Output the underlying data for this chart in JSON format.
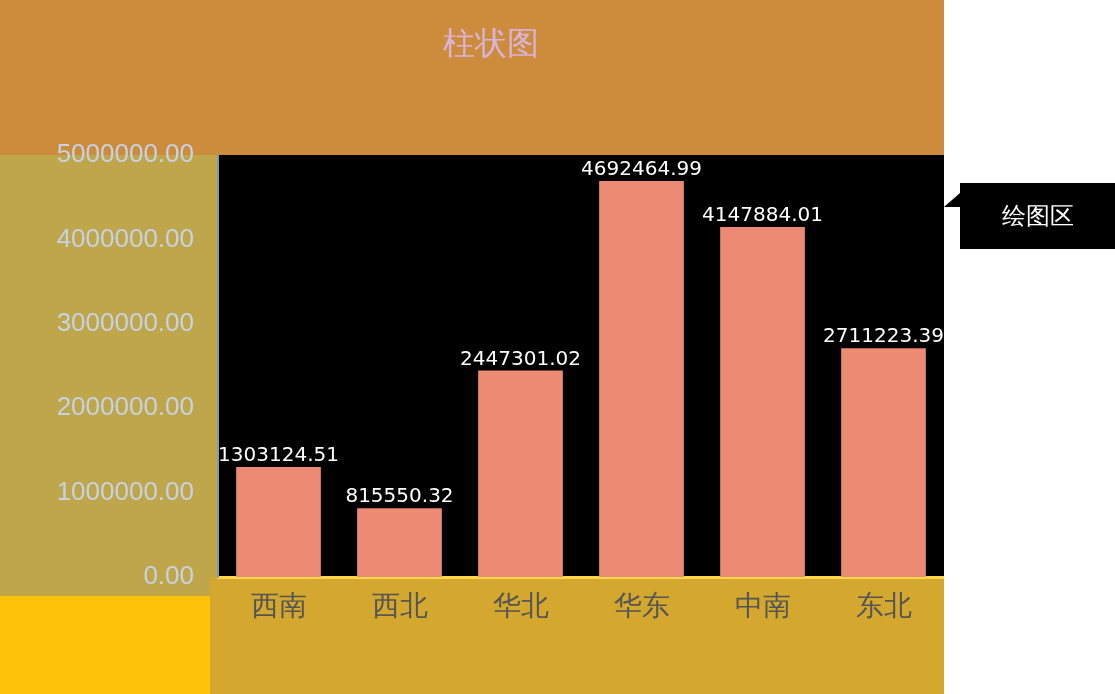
{
  "chart_data": {
    "type": "bar",
    "title": "柱状图",
    "categories": [
      "西南",
      "西北",
      "华北",
      "华东",
      "中南",
      "东北"
    ],
    "values": [
      1303124.51,
      815550.32,
      2447301.02,
      4692464.99,
      4147884.01,
      2711223.39
    ],
    "color": "#ec8a73",
    "ylim": [
      0,
      5000000
    ],
    "yticks": [
      {
        "value": 0,
        "label": "0.00"
      },
      {
        "value": 1000000,
        "label": "1000000.00"
      },
      {
        "value": 2000000,
        "label": "2000000.00"
      },
      {
        "value": 3000000,
        "label": "3000000.00"
      },
      {
        "value": 4000000,
        "label": "4000000.00"
      },
      {
        "value": 5000000,
        "label": "5000000.00"
      }
    ],
    "grid": false,
    "data_labels": true,
    "annotations": [
      "绘图区"
    ]
  }
}
